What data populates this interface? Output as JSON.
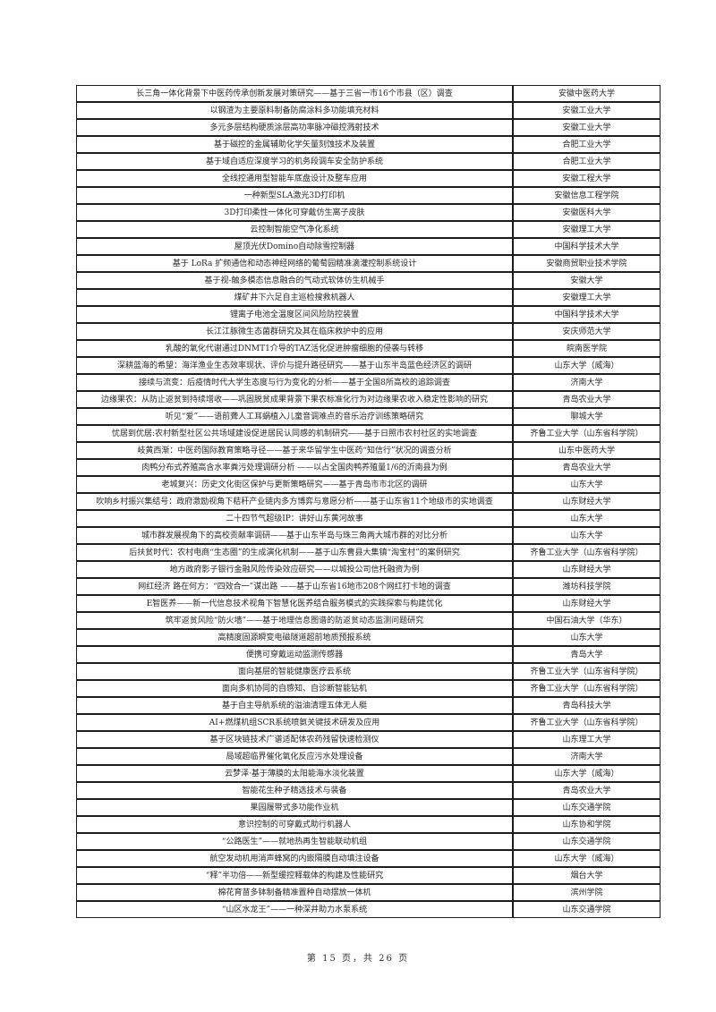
{
  "page": {
    "footer": "第 15 页，共 26 页"
  },
  "table": {
    "rows": [
      {
        "title": "长三角一体化背景下中医药传承创新发展对策研究——基于三省一市16个市县（区）调查",
        "university": "安徽中医药大学"
      },
      {
        "title": "以钢渣为主要原料制备防腐涂料多功能填充材料",
        "university": "安徽工业大学"
      },
      {
        "title": "多元多层结构硬质涂层高功率脉冲磁控溅射技术",
        "university": "安徽工业大学"
      },
      {
        "title": "基于磁控的金属辅助化学矢量刻蚀技术及装置",
        "university": "合肥工业大学"
      },
      {
        "title": "基于域自适应深度学习的机务段调车安全防护系统",
        "university": "合肥工业大学"
      },
      {
        "title": "全线控通用型智能车底盘设计及整车应用",
        "university": "安徽工程大学"
      },
      {
        "title": "一种新型SLA激光3D打印机",
        "university": "安徽信息工程学院"
      },
      {
        "title": "3D打印柔性一体化可穿戴仿生离子皮肤",
        "university": "安徽医科大学"
      },
      {
        "title": "云控制智能空气净化系统",
        "university": "安徽理工大学"
      },
      {
        "title": "屋顶光伏Domino自动除雪控制器",
        "university": "中国科学技术大学"
      },
      {
        "title": "基于 LoRa 扩频通信和动态神经网络的葡萄园精准滴灌控制系统设计",
        "university": "安徽商贸职业技术学院"
      },
      {
        "title": "基于视-触多模态信息融合的气动式软体仿生机械手",
        "university": "安徽大学"
      },
      {
        "title": "煤矿井下六足自主巡检搜救机器人",
        "university": "安徽理工大学"
      },
      {
        "title": "锂离子电池全温度区间风险防控装置",
        "university": "中国科学技术大学"
      },
      {
        "title": "长江江豚微生态菌群研究及其在临床救护中的应用",
        "university": "安庆师范大学"
      },
      {
        "title": "乳酸的氧化代谢通过DNMT1介导的TAZ活化促进肿瘤细胞的侵袭与转移",
        "university": "皖南医学院"
      },
      {
        "title": "深耕蓝海的希望：海洋渔业生态效率现状、评价与提升路径研究——基于山东半岛蓝色经济区的调研",
        "university": "山东大学（威海）"
      },
      {
        "title": "接续与流变：后疫情时代大学生态度与行为变化的分析——基于全国8所高校的追踪调查",
        "university": "济南大学"
      },
      {
        "title": "边缘果农：从防止返贫到持续增收——巩固脱贫成果背景下果农标准化行为对边缘果农收入稳定性影响的研究",
        "university": "青岛农业大学"
      },
      {
        "title": "听见“爱”——语前聋人工耳蜗植入儿童音调难点的音乐治疗训练策略研究",
        "university": "聊城大学"
      },
      {
        "title": "忧居到优居:农村新型社区公共场域建设促进居民认同感的机制研究——基于日照市农村社区的实地调查",
        "university": "齐鲁工业大学（山东省科学院）"
      },
      {
        "title": "岐黄西渐：中医药国际教育策略寻径——基于来华留学生中医药“知信行”状况的调查分析",
        "university": "山东中医药大学"
      },
      {
        "title": "肉鸭分布式养殖高含水率粪污处理调研分析 ——以占全国肉鸭养殖量1/6的沂南县为例",
        "university": "青岛农业大学"
      },
      {
        "title": "老城复兴：历史文化街区保护与更新策略研究——基于青岛市市北区的调研",
        "university": "山东大学"
      },
      {
        "title": "吹响乡村振兴集结号：政府激励视角下秸秆产业链内多方博弈与意愿分析——基于山东省11个地级市的实地调查",
        "university": "山东财经大学"
      },
      {
        "title": "二十四节气超级IP：讲好山东黄河故事",
        "university": "山东大学"
      },
      {
        "title": "城市群发展视角下的高校贡献率调研——基于山东半岛与珠三角两大城市群的对比分析",
        "university": "山东大学"
      },
      {
        "title": "后扶贫时代：农村电商“生态圈”的生成演化机制——基于山东曹县大集镇“淘宝村”的案例研究",
        "university": "齐鲁工业大学（山东省科学院）"
      },
      {
        "title": "地方政府影子银行金融风险传染效应研究——以城投公司信托融资为例",
        "university": "山东财经大学"
      },
      {
        "title": "网红经济 路在何方：“四效合一”谋出路 ——基于山东省16地市208个网红打卡地的调查",
        "university": "潍坊科技学院"
      },
      {
        "title": "E智医养——新一代信息技术视角下智慧化医养结合服务模式的实践探索与构建优化",
        "university": "山东财经大学"
      },
      {
        "title": "筑牢返贫风险“防火墙”——基于地理信息图谱的防返贫动态监测问题研究",
        "university": "中国石油大学（华东）"
      },
      {
        "title": "高精度固源瞬变电磁隧道超前地质预报系统",
        "university": "山东大学"
      },
      {
        "title": "便携可穿戴运动监测传感器",
        "university": "青岛大学"
      },
      {
        "title": "面向基层的智能健康医疗云系统",
        "university": "齐鲁工业大学（山东省科学院）"
      },
      {
        "title": "面向多机协同的自感知、自诊断智能钻机",
        "university": "齐鲁工业大学（山东省科学院）"
      },
      {
        "title": "基于自主导航系统的溢油清理五体无人艇",
        "university": "青岛科技大学"
      },
      {
        "title": "AI+燃煤机组SCR系统喷氨关键技术研发及应用",
        "university": "齐鲁工业大学（山东省科学院）"
      },
      {
        "title": "基于区块链技术广谱适配体农药残留快速检测仪",
        "university": "山东理工大学"
      },
      {
        "title": "局域超临界催化氧化反应污水处理设备",
        "university": "济南大学"
      },
      {
        "title": "云梦泽·基于薄膜的太阳能海水淡化装置",
        "university": "山东大学（威海）"
      },
      {
        "title": "智能花生种子精选技术与装备",
        "university": "青岛农业大学"
      },
      {
        "title": "果园履带式多功能作业机",
        "university": "山东交通学院"
      },
      {
        "title": "意识控制的可穿戴式助行机器人",
        "university": "山东协和学院"
      },
      {
        "title": "“公路医生”——就地热再生智能联动机组",
        "university": "山东交通学院"
      },
      {
        "title": "航空发动机用消声蜂窝的内嵌隔膜自动填注设备",
        "university": "山东大学（威海）"
      },
      {
        "title": "“释”半功倍——新型缓控释载体的构建及性能研究",
        "university": "烟台大学"
      },
      {
        "title": "棉花育苗多钵制备精准置种自动摆放一体机",
        "university": "滨州学院"
      },
      {
        "title": "“山区水龙王”——一种深井助力水泵系统",
        "university": "山东交通学院"
      }
    ]
  }
}
